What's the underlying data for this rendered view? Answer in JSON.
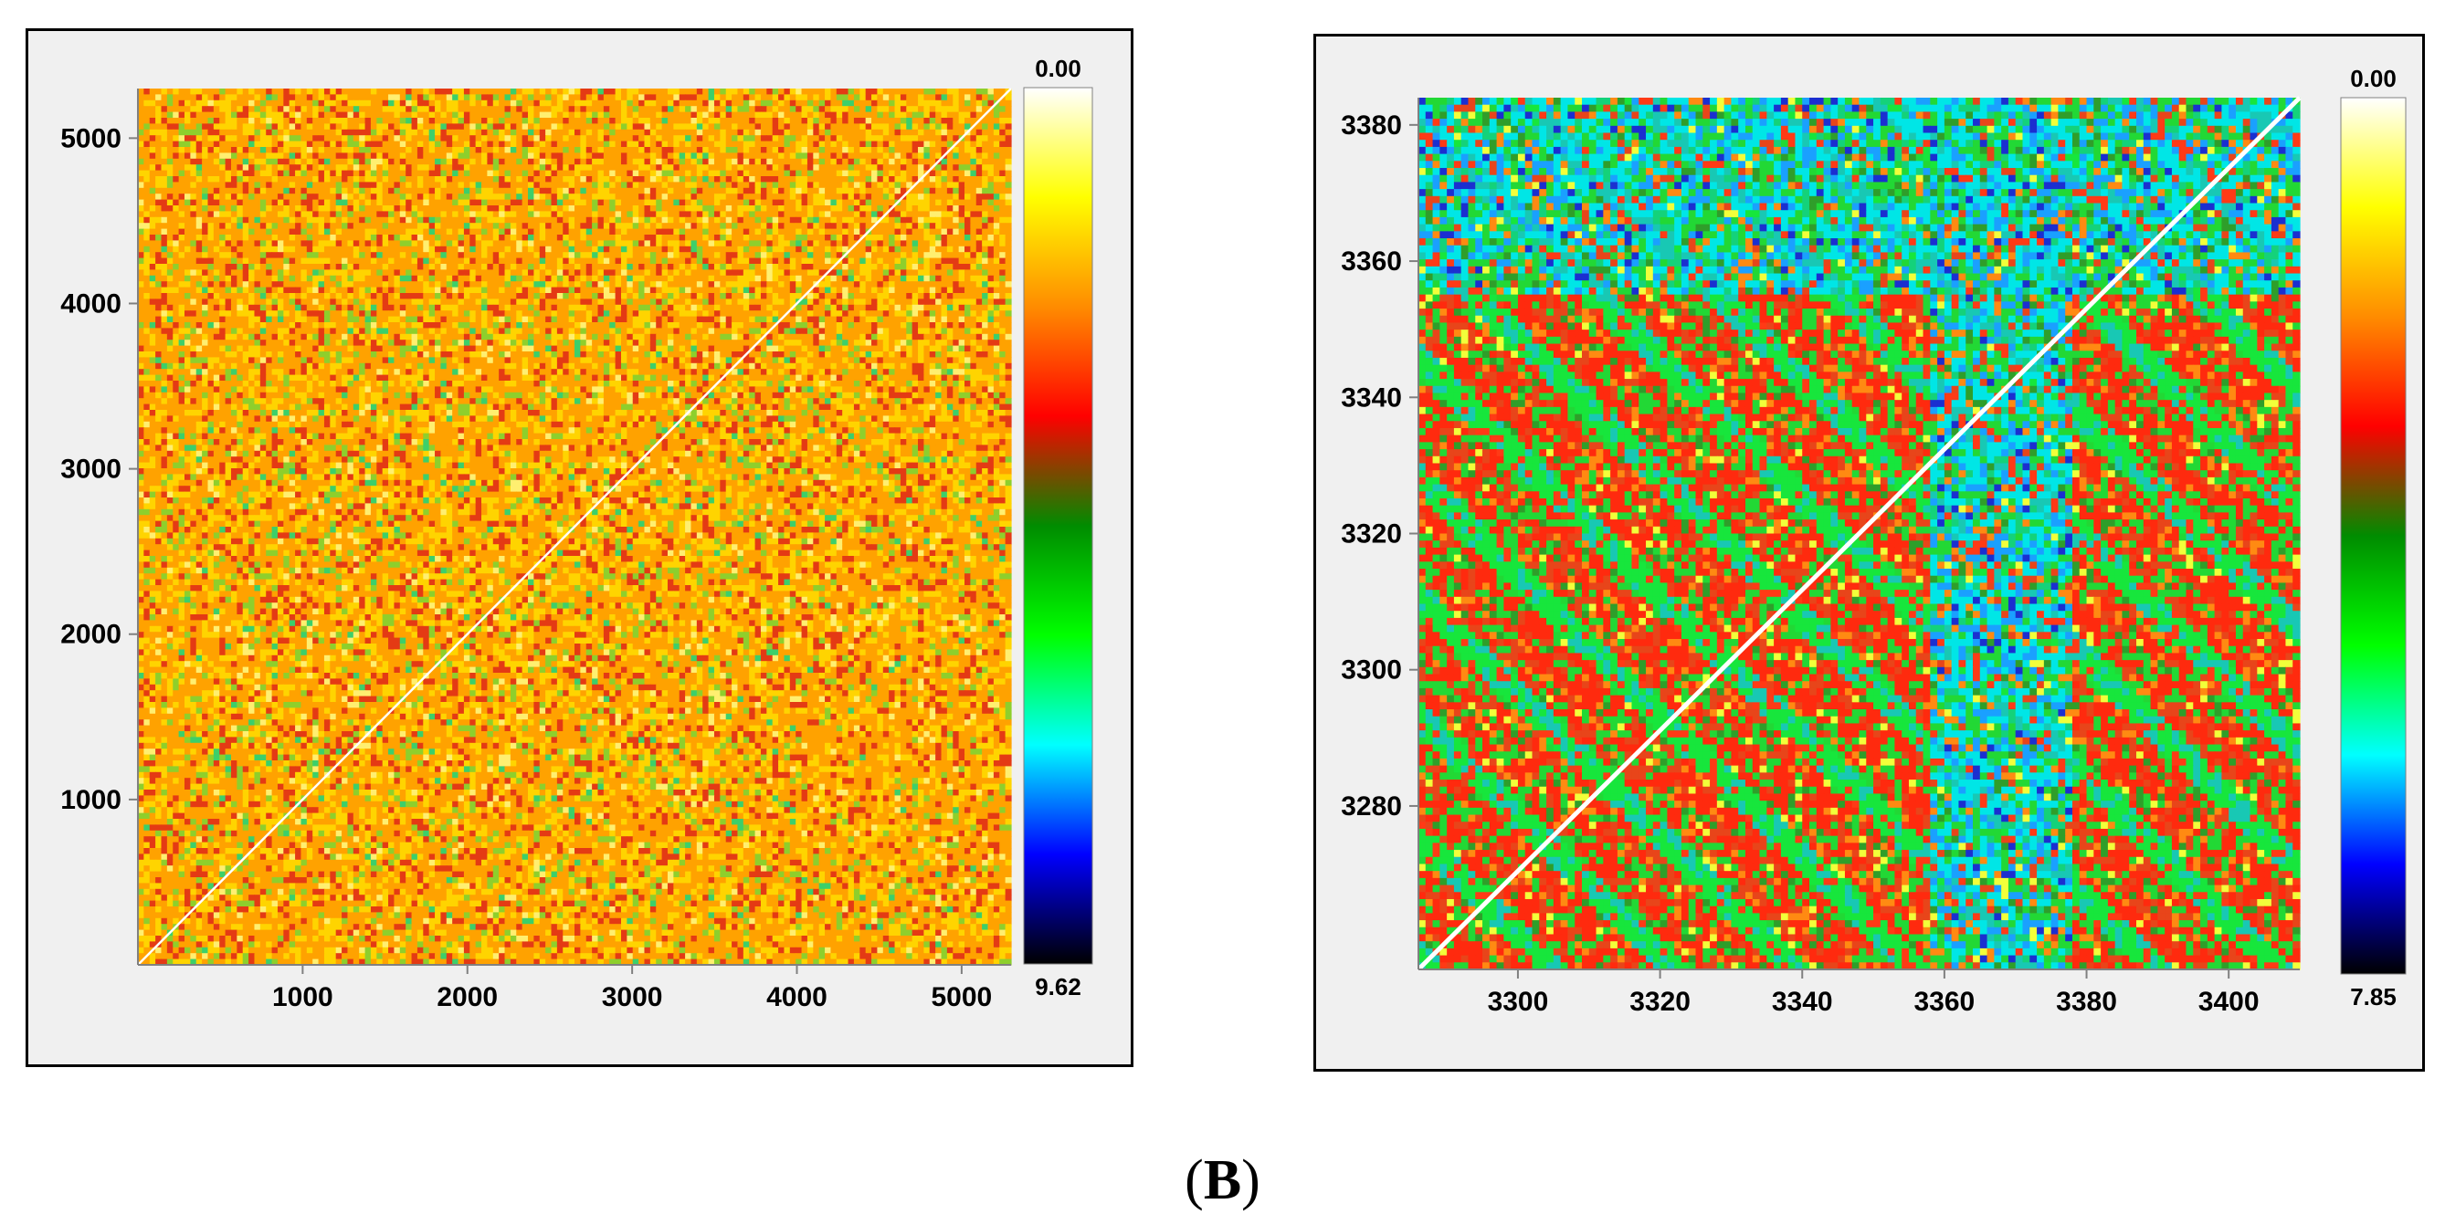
{
  "chart_data": [
    {
      "type": "heatmap",
      "title": "",
      "xlabel": "",
      "ylabel": "",
      "xlim": [
        0,
        5300
      ],
      "ylim": [
        0,
        5300
      ],
      "x_ticks": [
        "1000",
        "2000",
        "3000",
        "4000",
        "5000"
      ],
      "y_ticks": [
        "1000",
        "2000",
        "3000",
        "4000",
        "5000"
      ],
      "colorbar": {
        "top_label": "0.00",
        "bottom_label": "9.62",
        "min": 0.0,
        "max": 9.62
      },
      "dominant_colors": "orange/yellow with scattered red and green; white diagonal"
    },
    {
      "type": "heatmap",
      "title": "",
      "xlabel": "",
      "ylabel": "",
      "xlim": [
        3286,
        3410
      ],
      "ylim": [
        3256,
        3384
      ],
      "x_ticks": [
        "3300",
        "3320",
        "3340",
        "3360",
        "3380",
        "3400"
      ],
      "y_ticks": [
        "3280",
        "3300",
        "3320",
        "3340",
        "3360",
        "3380"
      ],
      "colorbar": {
        "top_label": "0.00",
        "bottom_label": "7.85",
        "min": 0.0,
        "max": 7.85
      },
      "dominant_colors": "red/green with cyan and blue bands; white diagonal"
    }
  ],
  "caption": {
    "open": "(",
    "letter": "B",
    "close": ")"
  },
  "colorbar_stops": [
    "#ffffff",
    "#ffff00",
    "#ff8c00",
    "#ff0000",
    "#008c00",
    "#00ff00",
    "#00ffff",
    "#0000ff",
    "#000000"
  ]
}
